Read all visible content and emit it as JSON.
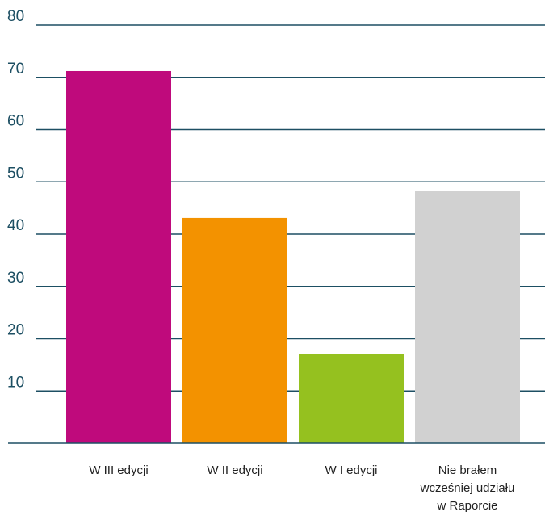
{
  "chart_data": {
    "type": "bar",
    "categories": [
      [
        "W III edycji"
      ],
      [
        "W II edycji"
      ],
      [
        "W I edycji"
      ],
      [
        "Nie brałem",
        "wcześniej udziału",
        "w Raporcie"
      ]
    ],
    "values": [
      71.2,
      43.1,
      17.0,
      48.2
    ],
    "colors": [
      "#bf0a7c",
      "#f39200",
      "#95c11f",
      "#d1d1d1"
    ],
    "yticks": [
      10,
      20,
      30,
      40,
      50,
      60,
      70,
      80
    ],
    "ylim": [
      0,
      80
    ],
    "grid": true,
    "gridline_color": "#1d4f63",
    "title": "",
    "xlabel": "",
    "ylabel": ""
  }
}
